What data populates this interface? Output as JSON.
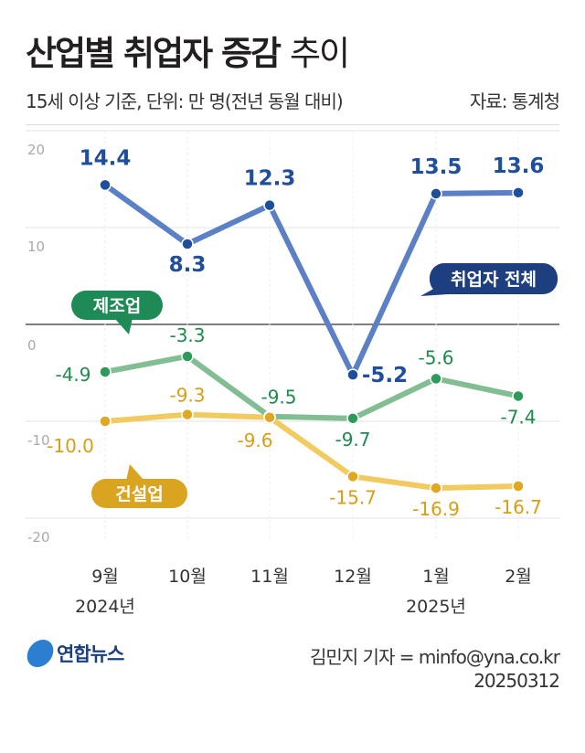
{
  "header": {
    "title_bold": "산업별 취업자 증감",
    "title_light": "추이",
    "subtitle": "15세 이상 기준, 단위: 만 명(전년 동월 대비)",
    "source": "자료: 통계청"
  },
  "footer": {
    "logo_text": "연합뉴스",
    "credit": "김민지 기자 = minfo@yna.co.kr",
    "date": "20250312"
  },
  "chart_data": {
    "type": "line",
    "categories": [
      "9월",
      "10월",
      "11월",
      "12월",
      "1월",
      "2월"
    ],
    "year_labels": [
      {
        "index": 0,
        "label": "2024년"
      },
      {
        "index": 4,
        "label": "2025년"
      }
    ],
    "ylim": [
      -20,
      20
    ],
    "yticks": [
      20,
      10,
      0,
      -10,
      -20
    ],
    "grid": true,
    "series": [
      {
        "name": "취업자 전체",
        "values": [
          14.4,
          8.3,
          12.3,
          -5.2,
          13.5,
          13.6
        ],
        "labels": [
          "14.4",
          "8.3",
          "12.3",
          "-5.2",
          "13.5",
          "13.6"
        ],
        "line_color": "#5b80c6",
        "point_color": "#1f4e9c",
        "label_color": "#1f4e9c",
        "tag_color": "#1d3e7f"
      },
      {
        "name": "제조업",
        "values": [
          -4.9,
          -3.3,
          -9.5,
          -9.7,
          -5.6,
          -7.4
        ],
        "labels": [
          "-4.9",
          "-3.3",
          "-9.5",
          "-9.7",
          "-5.6",
          "-7.4"
        ],
        "line_color": "#82bd94",
        "point_color": "#2e9a5a",
        "label_color": "#1f8a4c",
        "tag_color": "#1e8a55"
      },
      {
        "name": "건설업",
        "values": [
          -10.0,
          -9.3,
          -9.6,
          -15.7,
          -16.9,
          -16.7
        ],
        "labels": [
          "-10.0",
          "-9.3",
          "-9.6",
          "-15.7",
          "-16.9",
          "-16.7"
        ],
        "line_color": "#f1cb60",
        "point_color": "#e0a820",
        "label_color": "#d89e14",
        "tag_color": "#d9a420"
      }
    ]
  }
}
